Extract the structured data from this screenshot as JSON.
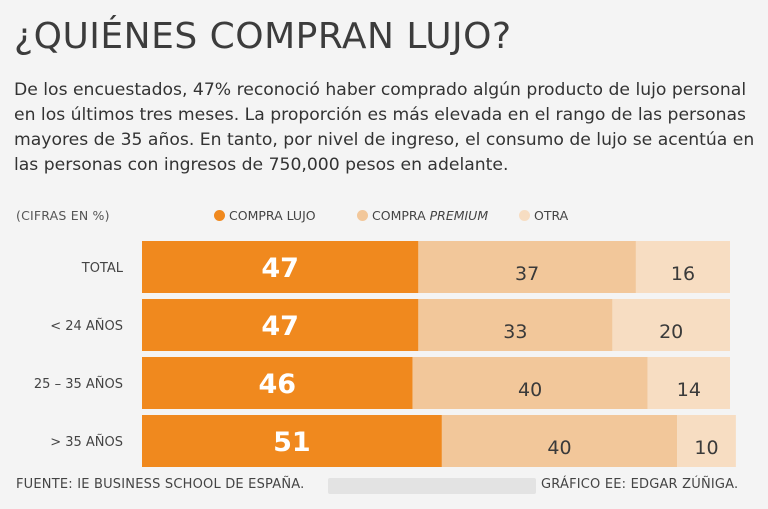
{
  "title": "¿QUIÉNES COMPRAN LUJO?",
  "description": "De los encuestados, 47% reconoció haber comprado algún producto de lujo personal en los últimos tres meses. La proporción es más elevada en el rango de las personas mayores de 35 años. En tanto, por nivel de ingreso, el consumo de lujo se acentúa en las personas con ingresos de 750,000 pesos en adelante.",
  "units_label": "(CIFRAS EN %)",
  "legend": [
    {
      "label_plain": "COMPRA LUJO",
      "label_italic": "",
      "color": "#f0891e"
    },
    {
      "label_plain": "COMPRA ",
      "label_italic": "PREMIUM",
      "color": "#f2c79a"
    },
    {
      "label_plain": "OTRA",
      "label_italic": "",
      "color": "#f7ddc2"
    }
  ],
  "chart_data": {
    "type": "bar",
    "stacked": true,
    "orientation": "horizontal",
    "categories": [
      "TOTAL",
      "< 24 AÑOS",
      "25 – 35 AÑOS",
      "> 35 AÑOS"
    ],
    "series": [
      {
        "name": "COMPRA LUJO",
        "values": [
          47,
          47,
          46,
          51
        ],
        "color": "#f0891e",
        "label_color": "#ffffff"
      },
      {
        "name": "COMPRA PREMIUM",
        "values": [
          37,
          33,
          40,
          40
        ],
        "color": "#f2c79a",
        "label_color": "#3a3a3a"
      },
      {
        "name": "OTRA",
        "values": [
          16,
          20,
          14,
          10
        ],
        "color": "#f7ddc2",
        "label_color": "#3a3a3a"
      }
    ],
    "xlim": [
      0,
      100
    ],
    "units": "%"
  },
  "footer": {
    "source": "FUENTE: IE BUSINESS SCHOOL DE ESPAÑA.",
    "credit": "GRÁFICO EE: EDGAR ZÚÑIGA."
  }
}
